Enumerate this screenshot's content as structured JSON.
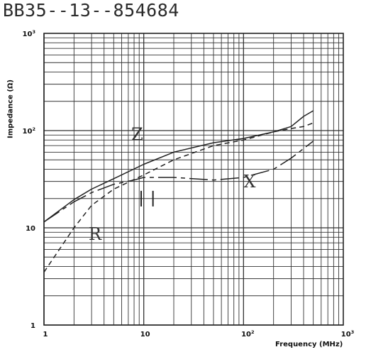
{
  "chart_data": {
    "type": "line",
    "title": "BB35--13--854684",
    "xlabel": "Frequency (MHz)",
    "ylabel": "Impedance (Ω)",
    "x_scale": "log",
    "y_scale": "log",
    "xlim": [
      1,
      1000
    ],
    "ylim": [
      1,
      1000
    ],
    "grid": true,
    "x_ticks": [
      {
        "value": 1,
        "base": "1",
        "exp": ""
      },
      {
        "value": 10,
        "base": "10",
        "exp": ""
      },
      {
        "value": 100,
        "base": "10",
        "exp": "2"
      },
      {
        "value": 1000,
        "base": "10",
        "exp": "3"
      }
    ],
    "y_ticks": [
      {
        "value": 1,
        "base": "1",
        "exp": ""
      },
      {
        "value": 10,
        "base": "10",
        "exp": ""
      },
      {
        "value": 100,
        "base": "10",
        "exp": "2"
      },
      {
        "value": 1000,
        "base": "10",
        "exp": "3"
      }
    ],
    "series": [
      {
        "name": "Z",
        "dash": "solid",
        "label_at": [
          7.5,
          80
        ],
        "points": [
          [
            1,
            11.5
          ],
          [
            2,
            19.5
          ],
          [
            3,
            25
          ],
          [
            5,
            32
          ],
          [
            10,
            45
          ],
          [
            20,
            60
          ],
          [
            50,
            75
          ],
          [
            100,
            83
          ],
          [
            200,
            97
          ],
          [
            300,
            110
          ],
          [
            400,
            140
          ],
          [
            500,
            160
          ]
        ]
      },
      {
        "name": "R",
        "dash": "dashed",
        "label_at": [
          2.8,
          7.5
        ],
        "points": [
          [
            1,
            3.5
          ],
          [
            2,
            10
          ],
          [
            3,
            17
          ],
          [
            5,
            25
          ],
          [
            10,
            35
          ],
          [
            20,
            50
          ],
          [
            50,
            70
          ],
          [
            100,
            80
          ],
          [
            200,
            97
          ],
          [
            300,
            105
          ],
          [
            400,
            110
          ],
          [
            500,
            120
          ]
        ]
      },
      {
        "name": "X",
        "dash": "mixed",
        "label_at": [
          100,
          26
        ],
        "points": [
          [
            1,
            11.5
          ],
          [
            2,
            18.5
          ],
          [
            3,
            23
          ],
          [
            5,
            28
          ],
          [
            8,
            31
          ],
          [
            10,
            33
          ],
          [
            20,
            33
          ],
          [
            50,
            31
          ],
          [
            100,
            33
          ],
          [
            200,
            40
          ],
          [
            300,
            52
          ],
          [
            500,
            78
          ]
        ]
      }
    ]
  }
}
